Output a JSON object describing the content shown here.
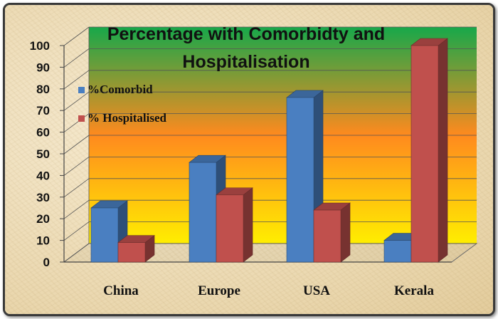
{
  "chart_data": {
    "type": "bar",
    "title": "Percentage with Comorbidty and Hospitalisation",
    "title_lines": [
      "Percentage with Comorbidty and",
      "Hospitalisation"
    ],
    "categories": [
      "China",
      "Europe",
      "USA",
      "Kerala"
    ],
    "series": [
      {
        "name": "%Comorbid",
        "values": [
          25,
          46,
          76,
          10
        ],
        "color": "#4a7fc1"
      },
      {
        "name": "% Hospitalised",
        "values": [
          9,
          31,
          24,
          100
        ],
        "color": "#c0504d"
      }
    ],
    "yticks": [
      0,
      10,
      20,
      30,
      40,
      50,
      60,
      70,
      80,
      90,
      100
    ],
    "ylim": [
      0,
      100
    ],
    "xlabel": "",
    "ylabel": "",
    "grid": true,
    "legend_position": "left",
    "background_gradient": [
      "#17a84a",
      "#ff8a1e",
      "#ffee00"
    ]
  }
}
